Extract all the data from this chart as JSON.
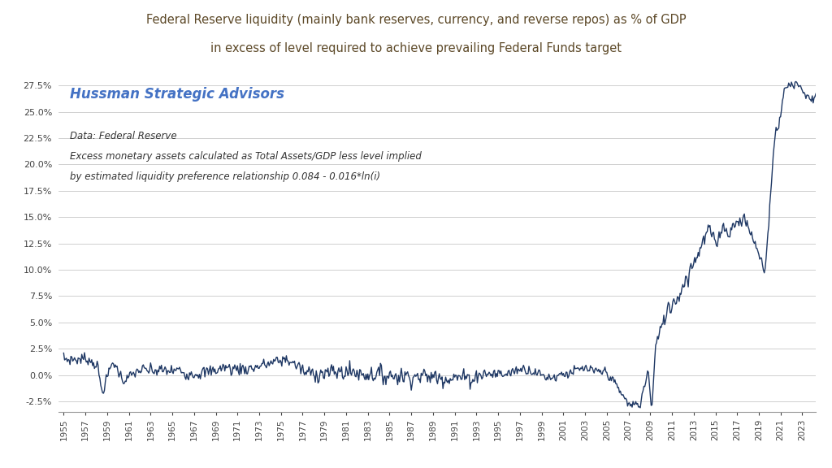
{
  "title_line1": "Federal Reserve liquidity (mainly bank reserves, currency, and reverse repos) as % of GDP",
  "title_line2": "in excess of level required to achieve prevailing Federal Funds target",
  "title_color": "#5C4827",
  "watermark": "Hussman Strategic Advisors",
  "watermark_color": "#4472C4",
  "annotation_line1": "Data: Federal Reserve",
  "annotation_line2": "Excess monetary assets calculated as Total Assets/GDP less level implied",
  "annotation_line3": "by estimated liquidity preference relationship 0.084 - 0.016*ln(i)",
  "line_color": "#1F3864",
  "background_color": "#FFFFFF",
  "grid_color": "#C8C8C8",
  "ytick_values": [
    -0.025,
    0.0,
    0.025,
    0.05,
    0.075,
    0.1,
    0.125,
    0.15,
    0.175,
    0.2,
    0.225,
    0.25,
    0.275
  ],
  "ylim": [
    -0.035,
    0.285
  ],
  "xlim_start": 1954.5,
  "xlim_end": 2024.2
}
